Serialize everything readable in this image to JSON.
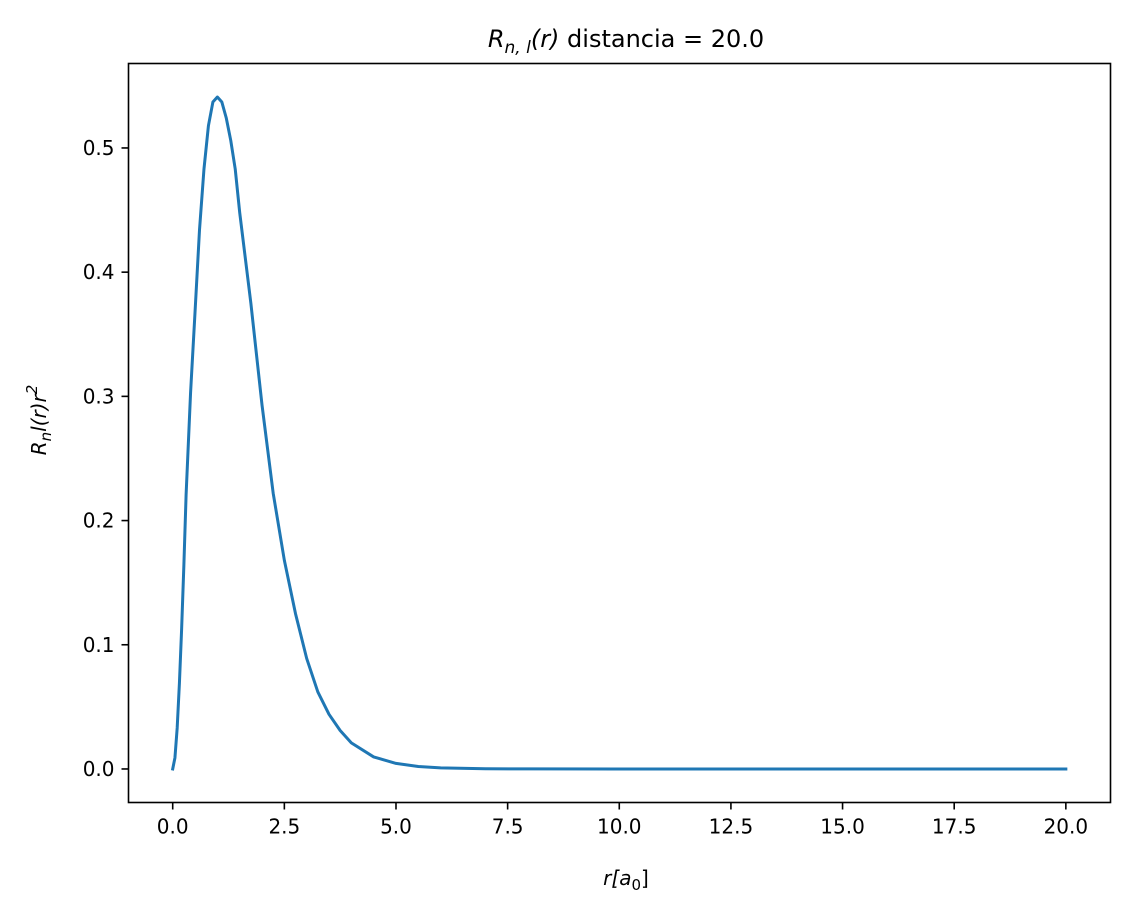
{
  "chart_data": {
    "type": "line",
    "title": {
      "prefix": "R",
      "subscript": "n, l",
      "argument": "(r)",
      "suffix": " distancia = 20.0"
    },
    "xlabel": {
      "main": "r[a",
      "subscript": "0",
      "close": "]"
    },
    "ylabel": {
      "main": "R",
      "subscript": "n",
      "middle": "l(r)r",
      "superscript": "2"
    },
    "xlim": [
      -0.99,
      21.0
    ],
    "ylim": [
      -0.027,
      0.568
    ],
    "grid": false,
    "legend": "none",
    "line_color": "#1f77b4",
    "xticks": [
      "0.0",
      "2.5",
      "5.0",
      "7.5",
      "10.0",
      "12.5",
      "15.0",
      "17.5",
      "20.0"
    ],
    "xtick_values": [
      0,
      2.5,
      5,
      7.5,
      10,
      12.5,
      15,
      17.5,
      20
    ],
    "yticks": [
      "0.0",
      "0.1",
      "0.2",
      "0.3",
      "0.4",
      "0.5"
    ],
    "ytick_values": [
      0,
      0.1,
      0.2,
      0.3,
      0.4,
      0.5
    ],
    "series": [
      {
        "x": [
          0,
          0.05,
          0.1,
          0.15,
          0.2,
          0.25,
          0.3,
          0.4,
          0.5,
          0.6,
          0.7,
          0.8,
          0.9,
          1.0,
          1.1,
          1.2,
          1.3,
          1.4,
          1.5,
          1.75,
          2.0,
          2.25,
          2.5,
          2.75,
          3.0,
          3.25,
          3.5,
          3.75,
          4.0,
          4.5,
          5.0,
          5.5,
          6.0,
          7.0,
          8.0,
          10.0,
          12.5,
          15.0,
          17.5,
          20.0
        ],
        "y": [
          0,
          0.009,
          0.033,
          0.069,
          0.113,
          0.164,
          0.221,
          0.303,
          0.368,
          0.434,
          0.483,
          0.518,
          0.537,
          0.541,
          0.537,
          0.524,
          0.506,
          0.483,
          0.448,
          0.375,
          0.293,
          0.222,
          0.168,
          0.125,
          0.089,
          0.062,
          0.044,
          0.031,
          0.021,
          0.0097,
          0.0045,
          0.002,
          0.0009,
          0.0002,
          4e-05,
          0,
          0,
          0,
          0,
          0
        ]
      }
    ]
  }
}
